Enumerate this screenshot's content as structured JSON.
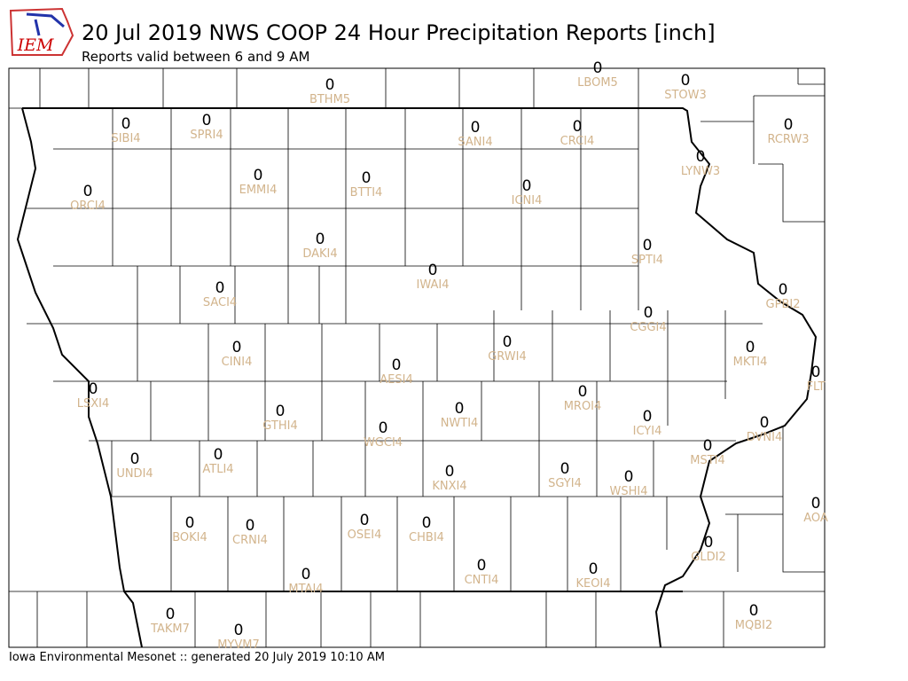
{
  "header": {
    "logo": "IEM",
    "title": "20 Jul 2019 NWS COOP 24 Hour Precipitation Reports [inch]",
    "subtitle": "Reports valid between 6 and 9 AM"
  },
  "stations": [
    {
      "id": "BTHM5",
      "value": 0
    },
    {
      "id": "LBOM5",
      "value": 0
    },
    {
      "id": "STOW3",
      "value": 0
    },
    {
      "id": "SIBI4",
      "value": 0
    },
    {
      "id": "SPRI4",
      "value": 0
    },
    {
      "id": "SANI4",
      "value": 0
    },
    {
      "id": "CRCI4",
      "value": 0
    },
    {
      "id": "RCRW3",
      "value": 0
    },
    {
      "id": "LYNW3",
      "value": 0
    },
    {
      "id": "EMMI4",
      "value": 0
    },
    {
      "id": "BTTI4",
      "value": 0
    },
    {
      "id": "ICNI4",
      "value": 0
    },
    {
      "id": "ORCI4",
      "value": 0
    },
    {
      "id": "DAKI4",
      "value": 0
    },
    {
      "id": "SPTI4",
      "value": 0
    },
    {
      "id": "IWAI4",
      "value": 0
    },
    {
      "id": "SACI4",
      "value": 0
    },
    {
      "id": "GPBI2",
      "value": 0
    },
    {
      "id": "CGGI4",
      "value": 0
    },
    {
      "id": "GRWI4",
      "value": 0
    },
    {
      "id": "CINI4",
      "value": 0
    },
    {
      "id": "MKTI4",
      "value": 0
    },
    {
      "id": "AESI4",
      "value": 0
    },
    {
      "id": "FLT",
      "value": 0
    },
    {
      "id": "LSXI4",
      "value": 0
    },
    {
      "id": "MROI4",
      "value": 0
    },
    {
      "id": "NWTI4",
      "value": 0
    },
    {
      "id": "GTHI4",
      "value": 0
    },
    {
      "id": "ICYI4",
      "value": 0
    },
    {
      "id": "DVNI4",
      "value": 0
    },
    {
      "id": "WGCI4",
      "value": 0
    },
    {
      "id": "MSTI4",
      "value": 0
    },
    {
      "id": "UNDI4",
      "value": 0
    },
    {
      "id": "ATLI4",
      "value": 0
    },
    {
      "id": "SGYI4",
      "value": 0
    },
    {
      "id": "KNXI4",
      "value": 0
    },
    {
      "id": "WSHI4",
      "value": 0
    },
    {
      "id": "AOA",
      "value": 0
    },
    {
      "id": "BOKI4",
      "value": 0
    },
    {
      "id": "CRNI4",
      "value": 0
    },
    {
      "id": "OSEI4",
      "value": 0
    },
    {
      "id": "CHBI4",
      "value": 0
    },
    {
      "id": "GLDI2",
      "value": 0
    },
    {
      "id": "CNTI4",
      "value": 0
    },
    {
      "id": "KEOI4",
      "value": 0
    },
    {
      "id": "MTAI4",
      "value": 0
    },
    {
      "id": "MQBI2",
      "value": 0
    },
    {
      "id": "TAKM7",
      "value": 0
    },
    {
      "id": "MYVM7",
      "value": 0
    }
  ],
  "footer": "Iowa Environmental Mesonet :: generated 20 July 2019 10:10 AM"
}
